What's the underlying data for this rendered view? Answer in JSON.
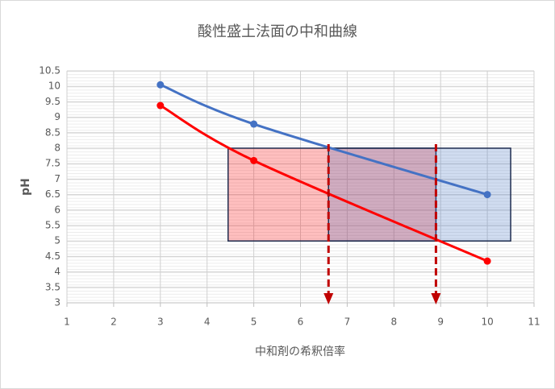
{
  "chart_data": {
    "type": "line",
    "title": "酸性盛土法面の中和曲線",
    "x_label": "中和剤の希釈倍率",
    "y_label": "pH",
    "series": [
      {
        "color": "#4472c4",
        "x": [
          3,
          5,
          10
        ],
        "values": [
          10.05,
          8.78,
          6.5
        ]
      },
      {
        "color": "#ff0000",
        "x": [
          3,
          5,
          10
        ],
        "values": [
          9.38,
          7.6,
          4.35
        ]
      }
    ],
    "regions": [
      {
        "x": [
          4.45,
          8.9
        ],
        "y": [
          5,
          8
        ],
        "color": "#ff0000"
      },
      {
        "x": [
          6.6,
          10.5
        ],
        "y": [
          5,
          8
        ],
        "color": "#4472c4"
      }
    ],
    "arrows": [
      {
        "x": 6.6,
        "y": [
          8,
          3
        ]
      },
      {
        "x": 8.9,
        "y": [
          8,
          3
        ]
      }
    ],
    "arrow_color": "#c00000",
    "xlim": [
      1,
      11
    ],
    "xticks": [
      1,
      2,
      3,
      4,
      5,
      6,
      7,
      8,
      9,
      10,
      11
    ],
    "ylim": [
      3,
      10.5
    ],
    "yticks": [
      3,
      3.5,
      4,
      4.5,
      5,
      5.5,
      6,
      6.5,
      7,
      7.5,
      8,
      8.5,
      9,
      9.5,
      10,
      10.5
    ],
    "grid": true
  }
}
